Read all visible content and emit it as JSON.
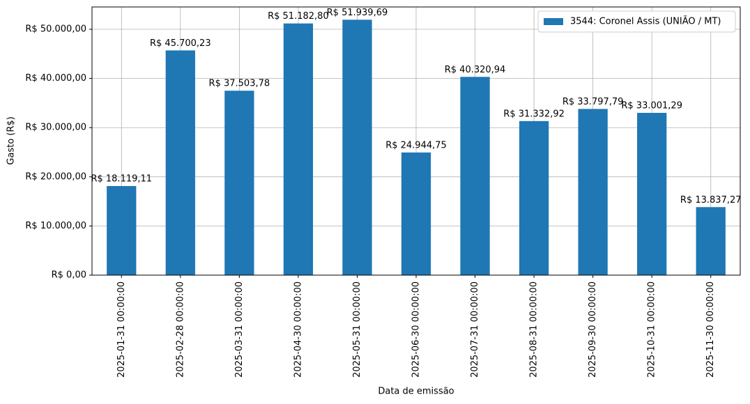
{
  "chart_data": {
    "type": "bar",
    "xlabel": "Data de emissão",
    "ylabel": "Gasto (R$)",
    "categories": [
      "2025-01-31 00:00:00",
      "2025-02-28 00:00:00",
      "2025-03-31 00:00:00",
      "2025-04-30 00:00:00",
      "2025-05-31 00:00:00",
      "2025-06-30 00:00:00",
      "2025-07-31 00:00:00",
      "2025-08-31 00:00:00",
      "2025-09-30 00:00:00",
      "2025-10-31 00:00:00",
      "2025-11-30 00:00:00"
    ],
    "series": [
      {
        "name": "3544: Coronel Assis (UNIÃO / MT)",
        "color": "#1f77b4",
        "values": [
          18119.11,
          45700.23,
          37503.78,
          51182.8,
          51939.69,
          24944.75,
          40320.94,
          31332.92,
          33797.79,
          33001.29,
          13837.27
        ],
        "value_labels": [
          "R$ 18.119,11",
          "R$ 45.700,23",
          "R$ 37.503,78",
          "R$ 51.182,80",
          "R$ 51.939,69",
          "R$ 24.944,75",
          "R$ 40.320,94",
          "R$ 31.332,92",
          "R$ 33.797,79",
          "R$ 33.001,29",
          "R$ 13.837,27"
        ]
      }
    ],
    "ylim": [
      0,
      54536.67
    ],
    "yticks": [
      {
        "value": 0,
        "label": "R$ 0,00"
      },
      {
        "value": 10000,
        "label": "R$ 10.000,00"
      },
      {
        "value": 20000,
        "label": "R$ 20.000,00"
      },
      {
        "value": 30000,
        "label": "R$ 30.000,00"
      },
      {
        "value": 40000,
        "label": "R$ 40.000,00"
      },
      {
        "value": 50000,
        "label": "R$ 50.000,00"
      }
    ],
    "grid": true,
    "legend": "upper right"
  }
}
